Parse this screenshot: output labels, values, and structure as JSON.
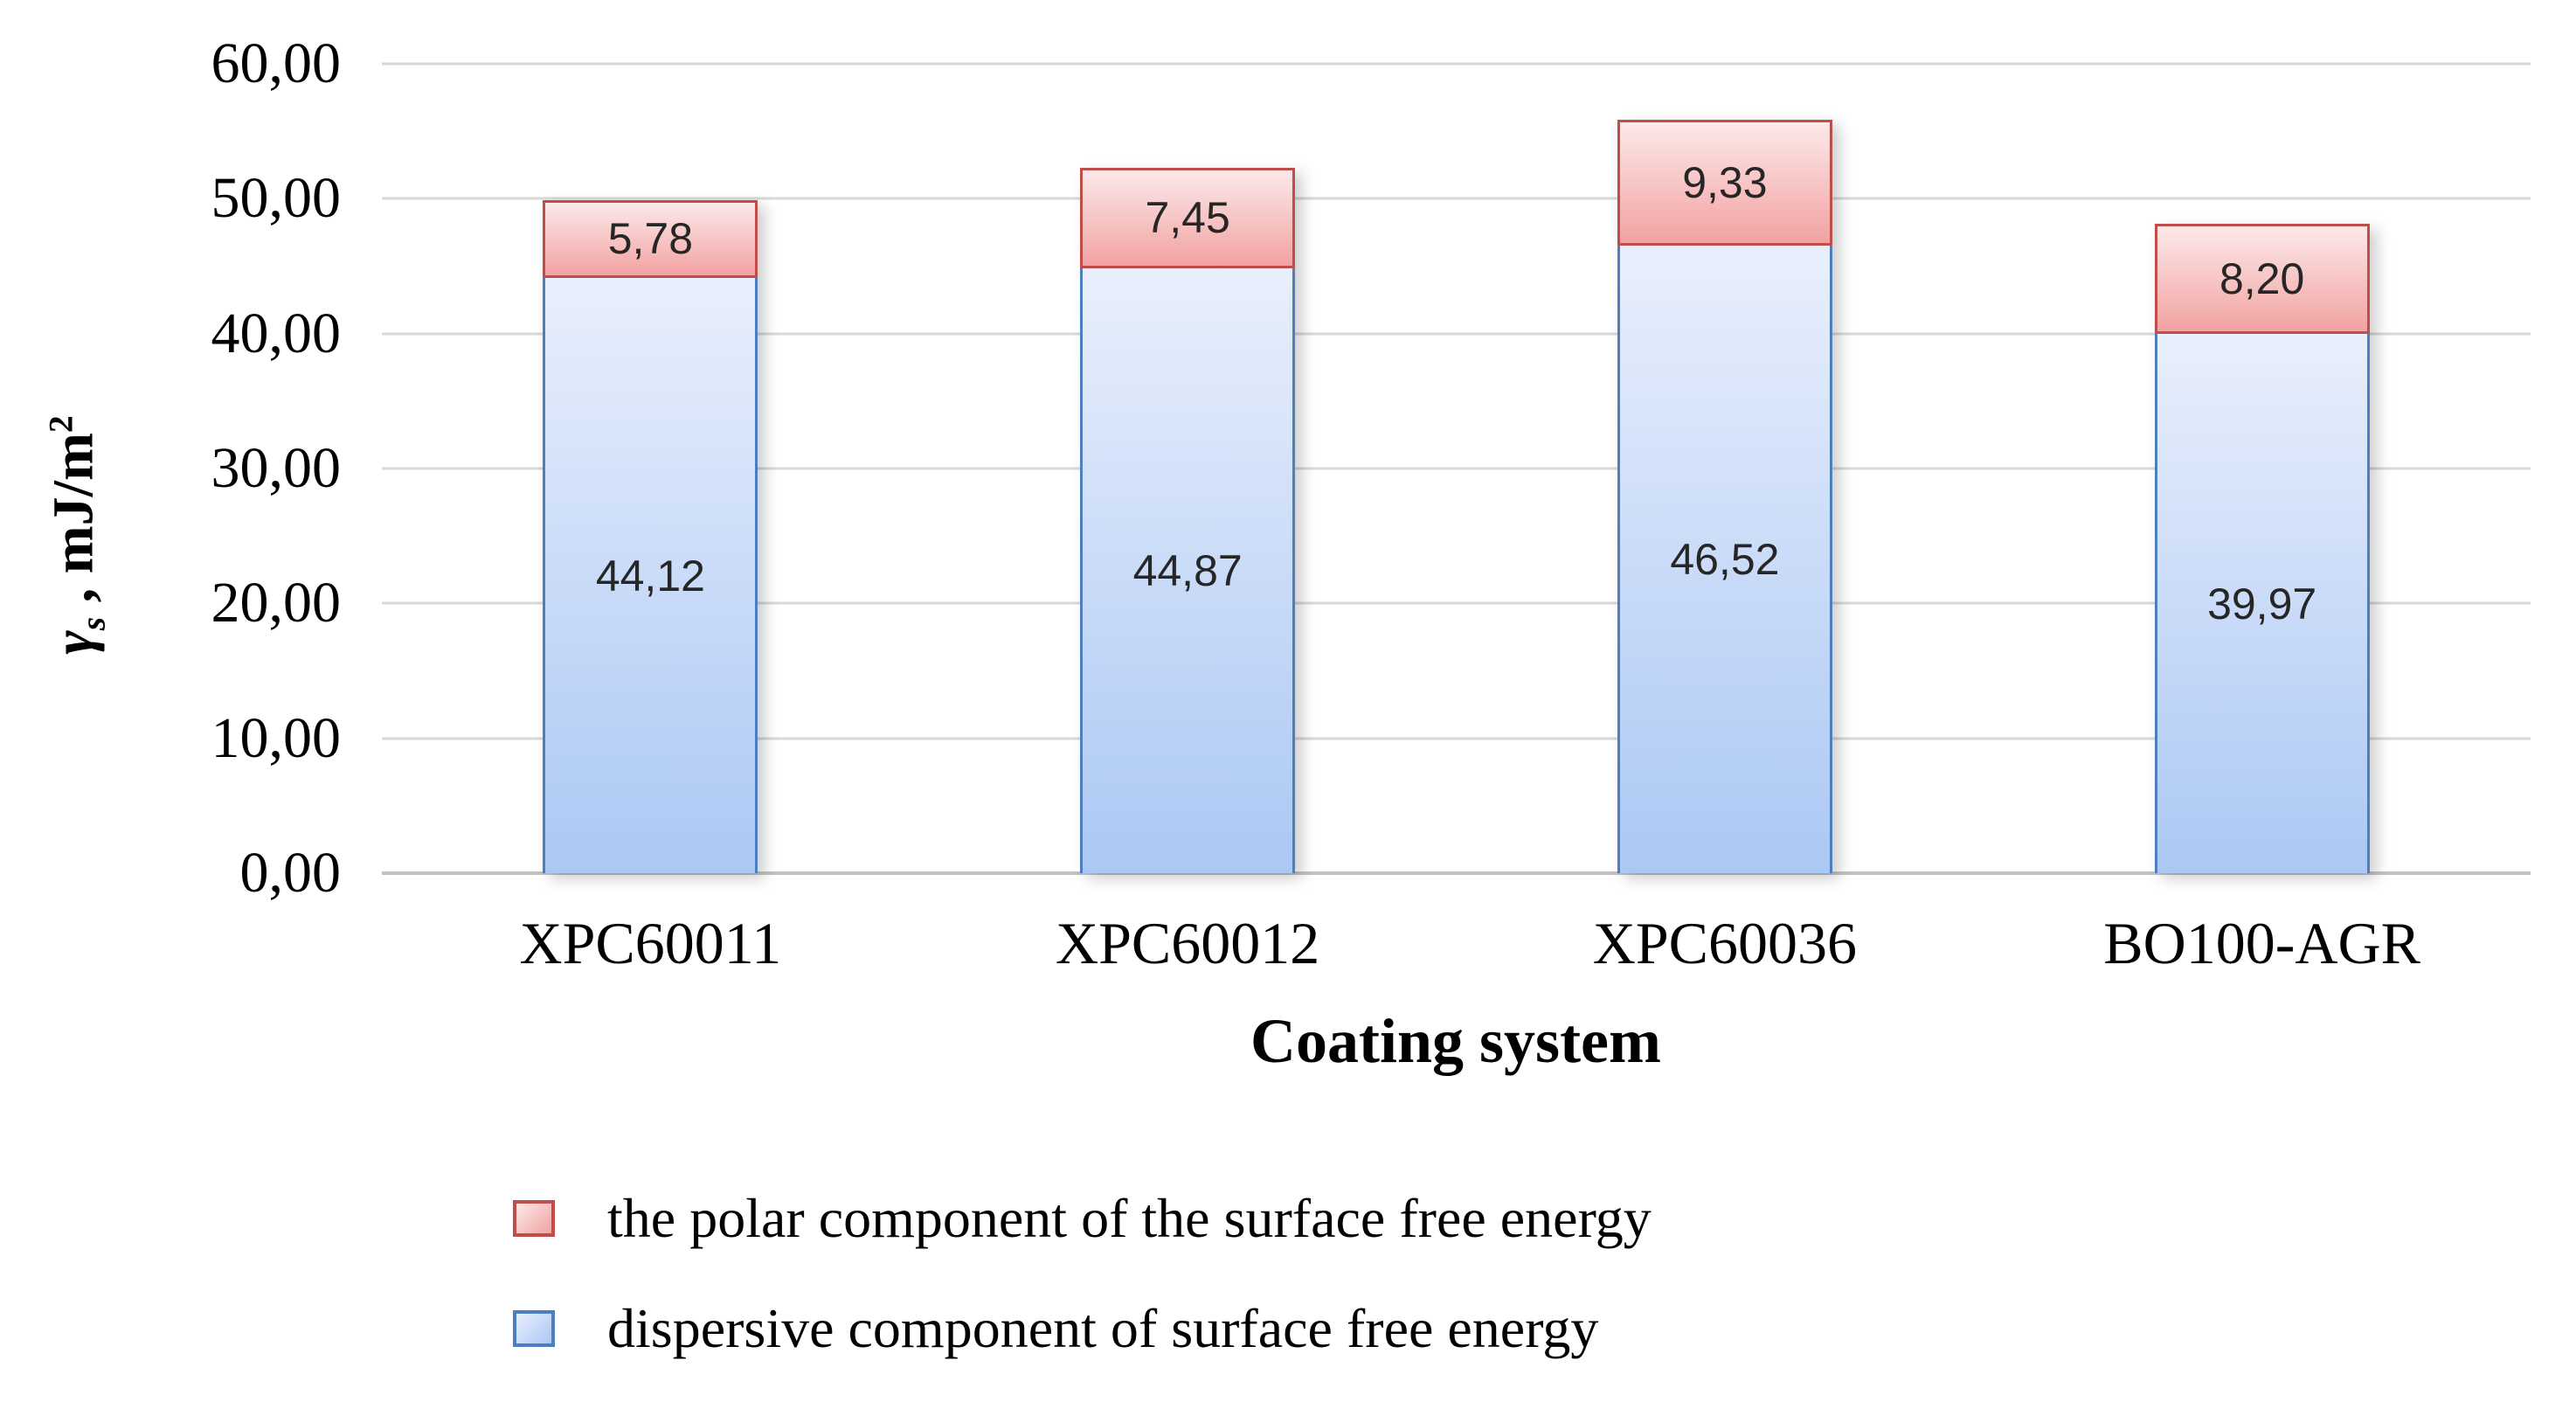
{
  "y_axis": {
    "ticks": [
      "60,00",
      "50,00",
      "40,00",
      "30,00",
      "20,00",
      "10,00",
      "0,00"
    ],
    "title": {
      "gamma": "γ",
      "sub": "s",
      "rest": " , mJ/m",
      "sup": "2"
    }
  },
  "x_axis": {
    "title": "Coating system"
  },
  "legend": {
    "items": [
      {
        "name": "polar",
        "label": "the polar component of the surface free energy"
      },
      {
        "name": "dispersive",
        "label": "dispersive component of surface free energy"
      }
    ]
  },
  "colors": {
    "polar_border": "#bf4e4b",
    "polar_fill_top": "#fce9e9",
    "polar_fill_bottom": "#f2a2a2",
    "dispersive_border": "#4d7ebf",
    "dispersive_fill_top": "#e9effc",
    "dispersive_fill_bottom": "#abc8f4",
    "gridline": "#d8d8d8",
    "baseline": "#c2c2c2",
    "value_label_text": "#262626"
  },
  "chart_data": {
    "type": "bar",
    "stacked": true,
    "categories": [
      "XPC60011",
      "XPC60012",
      "XPC60036",
      "BO100-AGR"
    ],
    "series": [
      {
        "name": "dispersive component of surface free energy",
        "values": [
          44.12,
          44.87,
          46.52,
          39.97
        ],
        "labels": [
          "44,12",
          "44,87",
          "46,52",
          "39,97"
        ]
      },
      {
        "name": "the polar component of the surface free energy",
        "values": [
          5.78,
          7.45,
          9.33,
          8.2
        ],
        "labels": [
          "5,78",
          "7,45",
          "9,33",
          "8,20"
        ]
      }
    ],
    "title": "",
    "xlabel": "Coating system",
    "ylabel": "γs , mJ/m²",
    "ylim": [
      0,
      60
    ],
    "y_tick_step": 10,
    "grid": true,
    "legend_position": "bottom-left"
  }
}
